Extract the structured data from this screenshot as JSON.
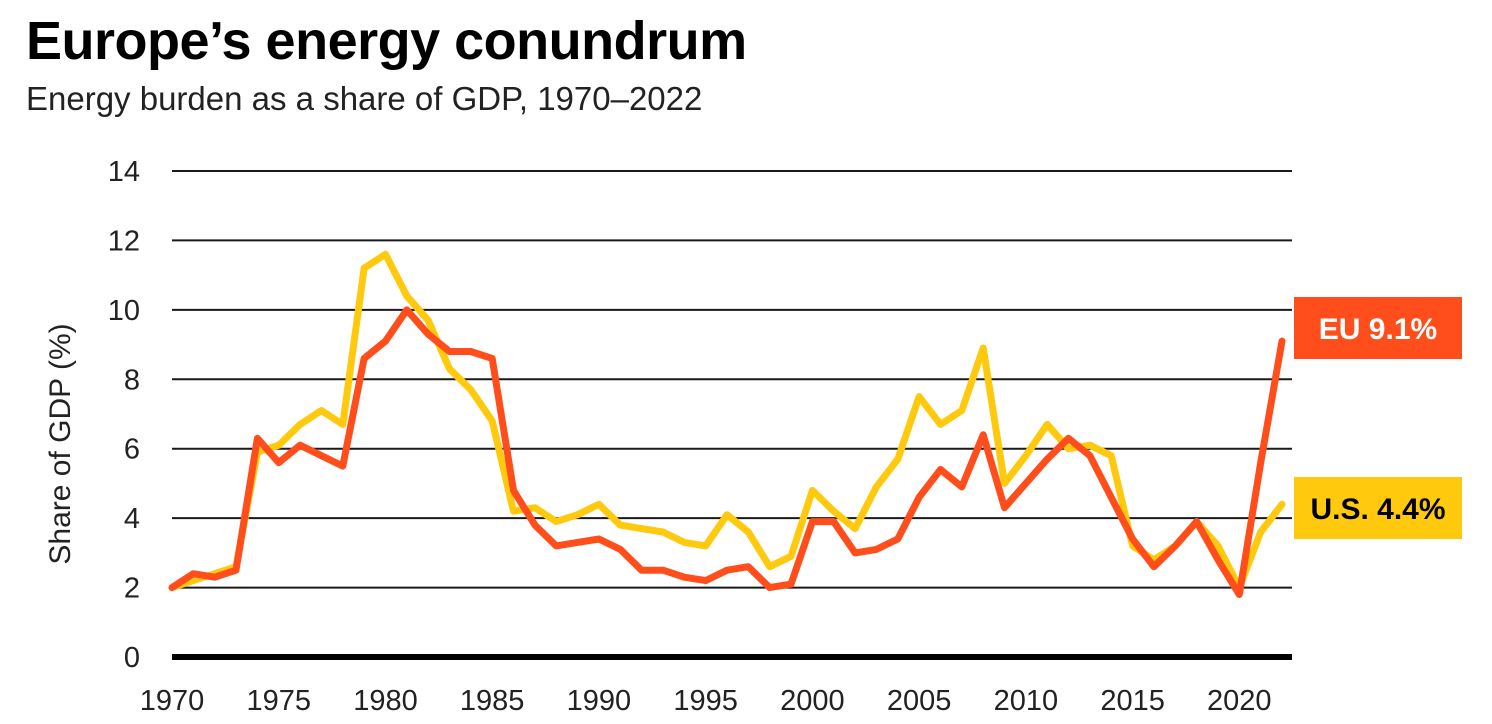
{
  "chart_data": {
    "type": "line",
    "title": "Europe’s energy conundrum",
    "subtitle": "Energy burden as a share of GDP, 1970–2022",
    "xlabel": "",
    "ylabel": "Share of GDP (%)",
    "xlim": [
      1970,
      2022
    ],
    "ylim": [
      0,
      14
    ],
    "yticks": [
      0,
      2,
      4,
      6,
      8,
      10,
      12,
      14
    ],
    "xticks": [
      1970,
      1975,
      1980,
      1985,
      1990,
      1995,
      2000,
      2005,
      2010,
      2015,
      2020
    ],
    "grid": true,
    "x": [
      1970,
      1971,
      1972,
      1973,
      1974,
      1975,
      1976,
      1977,
      1978,
      1979,
      1980,
      1981,
      1982,
      1983,
      1984,
      1985,
      1986,
      1987,
      1988,
      1989,
      1990,
      1991,
      1992,
      1993,
      1994,
      1995,
      1996,
      1997,
      1998,
      1999,
      2000,
      2001,
      2002,
      2003,
      2004,
      2005,
      2006,
      2007,
      2008,
      2009,
      2010,
      2011,
      2012,
      2013,
      2014,
      2015,
      2016,
      2017,
      2018,
      2019,
      2020,
      2021,
      2022
    ],
    "series": [
      {
        "name": "U.S.",
        "label": "U.S. 4.4%",
        "color": "#FFC90E",
        "label_text_color": "#000000",
        "values": [
          2.0,
          2.2,
          2.4,
          2.6,
          5.9,
          6.1,
          6.7,
          7.1,
          6.7,
          11.2,
          11.6,
          10.4,
          9.7,
          8.3,
          7.7,
          6.8,
          4.2,
          4.3,
          3.9,
          4.1,
          4.4,
          3.8,
          3.7,
          3.6,
          3.3,
          3.2,
          4.1,
          3.6,
          2.6,
          2.9,
          4.8,
          4.2,
          3.7,
          4.9,
          5.7,
          7.5,
          6.7,
          7.1,
          8.9,
          5.0,
          5.8,
          6.7,
          6.0,
          6.1,
          5.8,
          3.2,
          2.8,
          3.2,
          3.9,
          3.2,
          2.0,
          3.6,
          4.4
        ]
      },
      {
        "name": "EU",
        "label": "EU 9.1%",
        "color": "#FF4E1C",
        "label_text_color": "#ffffff",
        "values": [
          2.0,
          2.4,
          2.3,
          2.5,
          6.3,
          5.6,
          6.1,
          5.8,
          5.5,
          8.6,
          9.1,
          10.0,
          9.3,
          8.8,
          8.8,
          8.6,
          4.8,
          3.8,
          3.2,
          3.3,
          3.4,
          3.1,
          2.5,
          2.5,
          2.3,
          2.2,
          2.5,
          2.6,
          2.0,
          2.1,
          3.9,
          3.9,
          3.0,
          3.1,
          3.4,
          4.6,
          5.4,
          4.9,
          6.4,
          4.3,
          5.0,
          5.7,
          6.3,
          5.8,
          4.6,
          3.4,
          2.6,
          3.2,
          3.9,
          2.8,
          1.8,
          5.6,
          9.1
        ]
      }
    ]
  }
}
